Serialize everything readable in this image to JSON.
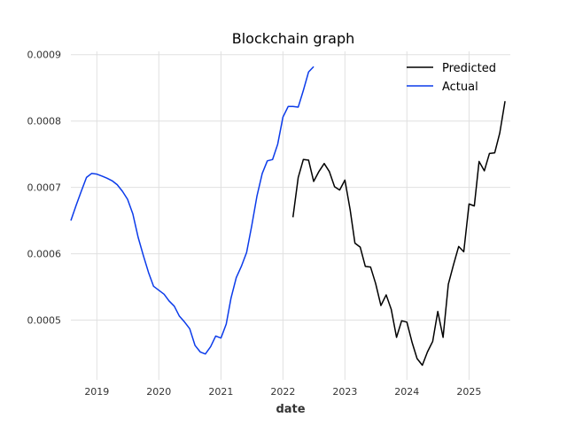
{
  "chart_data": {
    "type": "line",
    "title": "Blockchain graph",
    "xlabel": "date",
    "ylabel": "",
    "x_unit": "date",
    "xlim": [
      "2018-08-01",
      "2025-09-01"
    ],
    "ylim": [
      0.00041,
      0.000905
    ],
    "grid": true,
    "legend_position": "top-right",
    "x_ticks": [
      {
        "date": "2019-01-01",
        "label": "2019"
      },
      {
        "date": "2020-01-01",
        "label": "2020"
      },
      {
        "date": "2021-01-01",
        "label": "2021"
      },
      {
        "date": "2022-01-01",
        "label": "2022"
      },
      {
        "date": "2023-01-01",
        "label": "2023"
      },
      {
        "date": "2024-01-01",
        "label": "2024"
      },
      {
        "date": "2025-01-01",
        "label": "2025"
      }
    ],
    "y_ticks": [
      {
        "value": 0.0005,
        "label": "0.0005"
      },
      {
        "value": 0.0006,
        "label": "0.0006"
      },
      {
        "value": 0.0007,
        "label": "0.0007"
      },
      {
        "value": 0.0008,
        "label": "0.0008"
      },
      {
        "value": 0.0009,
        "label": "0.0009"
      }
    ],
    "series": [
      {
        "name": "Predicted",
        "color": "#000000",
        "points": [
          [
            "2022-03-01",
            0.000655
          ],
          [
            "2022-04-01",
            0.000715
          ],
          [
            "2022-05-01",
            0.000742
          ],
          [
            "2022-06-01",
            0.000741
          ],
          [
            "2022-07-01",
            0.000709
          ],
          [
            "2022-08-01",
            0.000724
          ],
          [
            "2022-09-01",
            0.000736
          ],
          [
            "2022-10-01",
            0.000724
          ],
          [
            "2022-11-01",
            0.000701
          ],
          [
            "2022-12-01",
            0.000696
          ],
          [
            "2023-01-01",
            0.000711
          ],
          [
            "2023-02-01",
            0.000666
          ],
          [
            "2023-03-01",
            0.000616
          ],
          [
            "2023-04-01",
            0.00061
          ],
          [
            "2023-05-01",
            0.000581
          ],
          [
            "2023-06-01",
            0.00058
          ],
          [
            "2023-07-01",
            0.000555
          ],
          [
            "2023-08-01",
            0.000522
          ],
          [
            "2023-09-01",
            0.000538
          ],
          [
            "2023-10-01",
            0.000516
          ],
          [
            "2023-11-01",
            0.000474
          ],
          [
            "2023-12-01",
            0.000499
          ],
          [
            "2024-01-01",
            0.000497
          ],
          [
            "2024-02-01",
            0.000466
          ],
          [
            "2024-03-01",
            0.000442
          ],
          [
            "2024-04-01",
            0.000432
          ],
          [
            "2024-05-01",
            0.000452
          ],
          [
            "2024-06-01",
            0.000468
          ],
          [
            "2024-07-01",
            0.000513
          ],
          [
            "2024-08-01",
            0.000474
          ],
          [
            "2024-09-01",
            0.000554
          ],
          [
            "2024-10-01",
            0.000583
          ],
          [
            "2024-11-01",
            0.000611
          ],
          [
            "2024-12-01",
            0.000603
          ],
          [
            "2025-01-01",
            0.000675
          ],
          [
            "2025-02-01",
            0.000672
          ],
          [
            "2025-03-01",
            0.000739
          ],
          [
            "2025-04-01",
            0.000725
          ],
          [
            "2025-05-01",
            0.000751
          ],
          [
            "2025-06-01",
            0.000752
          ],
          [
            "2025-07-01",
            0.000782
          ],
          [
            "2025-08-01",
            0.00083
          ]
        ]
      },
      {
        "name": "Actual",
        "color": "#0b3bea",
        "points": [
          [
            "2018-08-01",
            0.00065
          ],
          [
            "2018-09-01",
            0.000673
          ],
          [
            "2018-10-01",
            0.000694
          ],
          [
            "2018-11-01",
            0.000715
          ],
          [
            "2018-12-01",
            0.000721
          ],
          [
            "2019-01-01",
            0.00072
          ],
          [
            "2019-02-01",
            0.000717
          ],
          [
            "2019-03-01",
            0.000714
          ],
          [
            "2019-04-01",
            0.00071
          ],
          [
            "2019-05-01",
            0.000704
          ],
          [
            "2019-06-01",
            0.000694
          ],
          [
            "2019-07-01",
            0.000682
          ],
          [
            "2019-08-01",
            0.00066
          ],
          [
            "2019-09-01",
            0.000625
          ],
          [
            "2019-10-01",
            0.000598
          ],
          [
            "2019-11-01",
            0.000572
          ],
          [
            "2019-12-01",
            0.000551
          ],
          [
            "2020-01-01",
            0.000545
          ],
          [
            "2020-02-01",
            0.000539
          ],
          [
            "2020-03-01",
            0.000529
          ],
          [
            "2020-04-01",
            0.000521
          ],
          [
            "2020-05-01",
            0.000506
          ],
          [
            "2020-06-01",
            0.000497
          ],
          [
            "2020-07-01",
            0.000487
          ],
          [
            "2020-08-01",
            0.000462
          ],
          [
            "2020-09-01",
            0.000452
          ],
          [
            "2020-10-01",
            0.000449
          ],
          [
            "2020-11-01",
            0.00046
          ],
          [
            "2020-12-01",
            0.000476
          ],
          [
            "2021-01-01",
            0.000473
          ],
          [
            "2021-02-01",
            0.000494
          ],
          [
            "2021-03-01",
            0.000533
          ],
          [
            "2021-04-01",
            0.000564
          ],
          [
            "2021-05-01",
            0.000581
          ],
          [
            "2021-06-01",
            0.000602
          ],
          [
            "2021-07-01",
            0.000642
          ],
          [
            "2021-08-01",
            0.000687
          ],
          [
            "2021-09-01",
            0.000721
          ],
          [
            "2021-10-01",
            0.00074
          ],
          [
            "2021-11-01",
            0.000742
          ],
          [
            "2021-12-01",
            0.000765
          ],
          [
            "2022-01-01",
            0.000806
          ],
          [
            "2022-02-01",
            0.000822
          ],
          [
            "2022-03-01",
            0.000822
          ],
          [
            "2022-04-01",
            0.000821
          ],
          [
            "2022-05-01",
            0.000846
          ],
          [
            "2022-06-01",
            0.000874
          ],
          [
            "2022-07-01",
            0.000882
          ]
        ]
      }
    ]
  }
}
